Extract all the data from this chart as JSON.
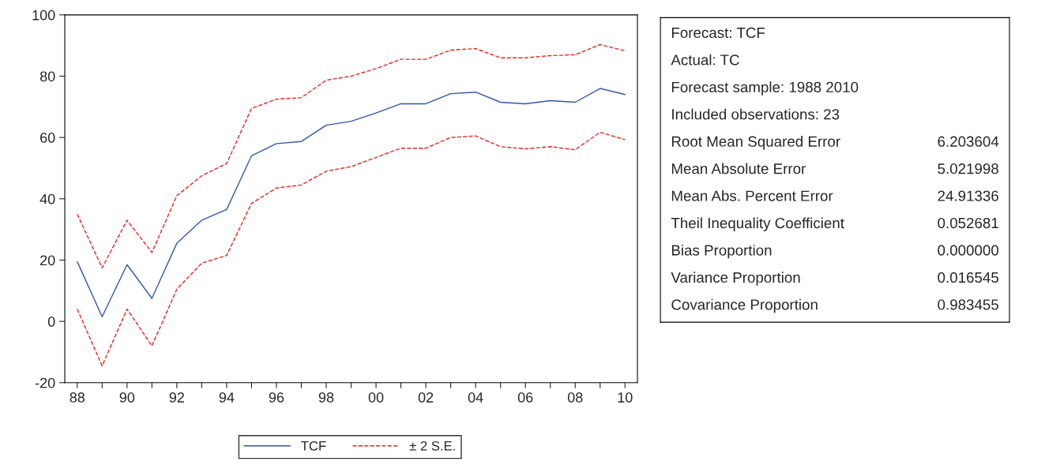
{
  "chart_data": [
    {
      "type": "line",
      "x": [
        1988,
        1989,
        1990,
        1991,
        1992,
        1993,
        1994,
        1995,
        1996,
        1997,
        1998,
        1999,
        2000,
        2001,
        2002,
        2003,
        2004,
        2005,
        2006,
        2007,
        2008,
        2009,
        2010
      ],
      "series": [
        {
          "name": "TCF",
          "color": "#3355aa",
          "line_style": "solid",
          "values": [
            19.5,
            1.5,
            18.5,
            7.5,
            25.5,
            33,
            36.5,
            54,
            58,
            58.7,
            64,
            65.3,
            68,
            71,
            71,
            74.3,
            74.8,
            71.5,
            71,
            72,
            71.5,
            76,
            74
          ]
        },
        {
          "name": "± 2 S.E.",
          "color": "#ee2222",
          "line_style": "dashed",
          "values": [
            35,
            17.5,
            33,
            22.5,
            41,
            47.5,
            51.5,
            69.5,
            72.5,
            73,
            78.7,
            80,
            82.5,
            85.5,
            85.5,
            88.5,
            89,
            86,
            86,
            86.7,
            87,
            90.3,
            88.3
          ]
        },
        {
          "color": "#ee2222",
          "line_style": "dashed",
          "values": [
            4,
            -14.5,
            4,
            -8,
            10.5,
            19,
            21.5,
            38.5,
            43.5,
            44.5,
            49,
            50.5,
            53.5,
            56.5,
            56.5,
            60,
            60.5,
            57,
            56.3,
            57,
            56,
            61.7,
            59.3
          ]
        }
      ],
      "xlim": [
        1987.5,
        2010.5
      ],
      "xticks": [
        {
          "value": 1988,
          "label": "88"
        },
        {
          "value": 1989,
          "label": null
        },
        {
          "value": 1990,
          "label": "90"
        },
        {
          "value": 1991,
          "label": null
        },
        {
          "value": 1992,
          "label": "92"
        },
        {
          "value": 1993,
          "label": null
        },
        {
          "value": 1994,
          "label": "94"
        },
        {
          "value": 1995,
          "label": null
        },
        {
          "value": 1996,
          "label": "96"
        },
        {
          "value": 1997,
          "label": null
        },
        {
          "value": 1998,
          "label": "98"
        },
        {
          "value": 1999,
          "label": null
        },
        {
          "value": 2000,
          "label": "00"
        },
        {
          "value": 2001,
          "label": null
        },
        {
          "value": 2002,
          "label": "02"
        },
        {
          "value": 2003,
          "label": null
        },
        {
          "value": 2004,
          "label": "04"
        },
        {
          "value": 2005,
          "label": null
        },
        {
          "value": 2006,
          "label": "06"
        },
        {
          "value": 2007,
          "label": null
        },
        {
          "value": 2008,
          "label": "08"
        },
        {
          "value": 2009,
          "label": null
        },
        {
          "value": 2010,
          "label": "10"
        }
      ],
      "ylim": [
        -20,
        100
      ],
      "yticks": [
        -20,
        0,
        20,
        40,
        60,
        80,
        100
      ],
      "grid": false,
      "legend": "bottom"
    },
    {
      "type": "other",
      "categories": [
        "Forecast: TCF",
        "Actual: TC",
        "Forecast sample: 1988 2010",
        "Included observations: 23",
        "Root Mean Squared Error",
        "Mean Absolute Error",
        "Mean Abs. Percent Error",
        "Theil Inequality Coefficient",
        "Bias Proportion",
        "Variance Proportion",
        "Covariance Proportion"
      ],
      "value_labels": [
        null,
        null,
        null,
        null,
        "6.203604",
        "5.021998",
        "24.91336",
        "0.052681",
        "0.000000",
        "0.016545",
        "0.983455"
      ]
    }
  ]
}
